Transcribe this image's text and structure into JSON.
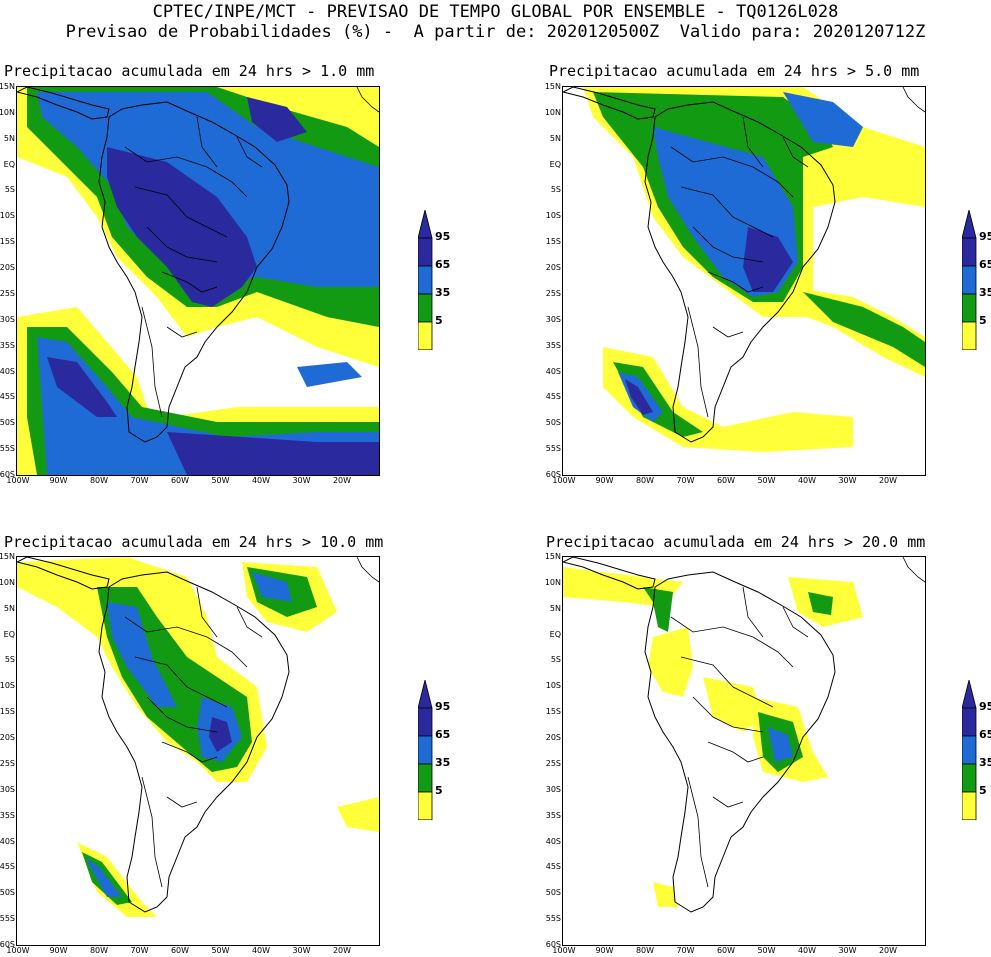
{
  "header": {
    "line1": "CPTEC/INPE/MCT - PREVISAO DE TEMPO GLOBAL POR ENSEMBLE - TQ0126L028",
    "line2": "Previsao de Probabilidades (%) -  A partir de: 2020120500Z  Valido para: 2020120712Z"
  },
  "lat_labels": [
    "15N",
    "10N",
    "5N",
    "EQ",
    "5S",
    "10S",
    "15S",
    "20S",
    "25S",
    "30S",
    "35S",
    "40S",
    "45S",
    "50S",
    "55S",
    "60S"
  ],
  "lon_labels": [
    "100W",
    "90W",
    "80W",
    "70W",
    "60W",
    "50W",
    "40W",
    "30W",
    "20W"
  ],
  "legend": {
    "levels": [
      "95",
      "65",
      "35",
      "5"
    ],
    "colors": {
      "p95": "#2a2a9e",
      "p65": "#1f6bd6",
      "p35": "#129a12",
      "p5": "#ffff3a"
    }
  },
  "panels": [
    {
      "title": "Precipitacao acumulada em 24 hrs > 1.0 mm"
    },
    {
      "title": "Precipitacao acumulada em 24 hrs > 5.0 mm"
    },
    {
      "title": "Precipitacao acumulada em 24 hrs > 10.0 mm"
    },
    {
      "title": "Precipitacao acumulada em 24 hrs > 20.0 mm"
    }
  ]
}
